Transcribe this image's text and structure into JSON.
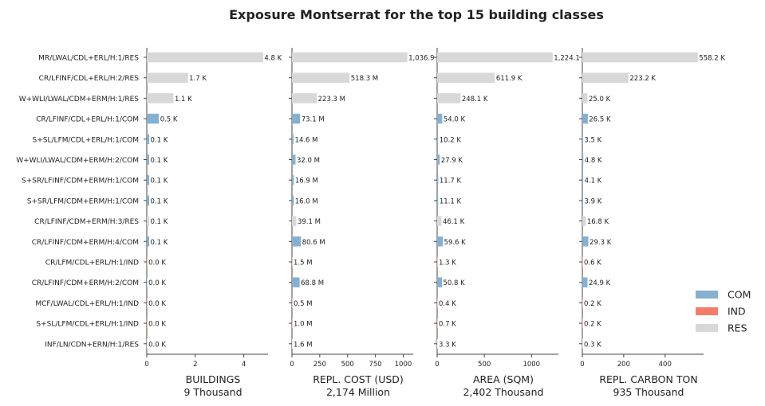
{
  "chart_data": {
    "type": "bar",
    "orientation": "horizontal",
    "title": "Exposure Montserrat for the top 15 building classes",
    "categories": [
      "MR/LWAL/CDL+ERL/H:1/RES",
      "CR/LFINF/CDL+ERL/H:2/RES",
      "W+WLI/LWAL/CDM+ERM/H:1/RES",
      "CR/LFINF/CDL+ERL/H:1/COM",
      "S+SL/LFM/CDL+ERL/H:1/COM",
      "W+WLI/LWAL/CDM+ERM/H:2/COM",
      "S+SR/LFINF/CDM+ERM/H:1/COM",
      "S+SR/LFM/CDM+ERM/H:1/COM",
      "CR/LFINF/CDM+ERM/H:3/RES",
      "CR/LFINF/CDM+ERM/H:4/COM",
      "CR/LFM/CDL+ERL/H:1/IND",
      "CR/LFINF/CDM+ERM/H:2/COM",
      "MCF/LWAL/CDL+ERL/H:1/IND",
      "S+SL/LFM/CDL+ERL/H:1/IND",
      "INF/LN/CDN+ERN/H:1/RES"
    ],
    "occupancy": [
      "RES",
      "RES",
      "RES",
      "COM",
      "COM",
      "COM",
      "COM",
      "COM",
      "RES",
      "COM",
      "IND",
      "COM",
      "IND",
      "IND",
      "RES"
    ],
    "colors": {
      "COM": "#85b0d0",
      "IND": "#f47c6b",
      "RES": "#d8d8d8"
    },
    "legend": {
      "position": "bottom-right",
      "entries": [
        {
          "label": "COM",
          "key": "COM"
        },
        {
          "label": "IND",
          "key": "IND"
        },
        {
          "label": "RES",
          "key": "RES"
        }
      ]
    },
    "panels": [
      {
        "xlabel": "BUILDINGS",
        "subtitle": "9 Thousand",
        "xlim": [
          0,
          5
        ],
        "xticks": [
          0,
          2,
          4
        ],
        "values": [
          4.8,
          1.7,
          1.1,
          0.5,
          0.1,
          0.1,
          0.1,
          0.1,
          0.1,
          0.1,
          0.02,
          0.02,
          0.02,
          0.02,
          0.02
        ],
        "labels": [
          "4.8 K",
          "1.7 K",
          "1.1 K",
          "0.5 K",
          "0.1 K",
          "0.1 K",
          "0.1 K",
          "0.1 K",
          "0.1 K",
          "0.1 K",
          "0.0 K",
          "0.0 K",
          "0.0 K",
          "0.0 K",
          "0.0 K"
        ]
      },
      {
        "xlabel": "REPL. COST (USD)",
        "subtitle": "2,174 Million",
        "xlim": [
          0,
          1090
        ],
        "xticks": [
          0,
          250,
          500,
          750,
          1000
        ],
        "values": [
          1036.9,
          518.3,
          223.3,
          73.1,
          14.6,
          32.0,
          16.9,
          16.0,
          39.1,
          80.6,
          1.5,
          68.8,
          0.5,
          1.0,
          1.6
        ],
        "labels": [
          "1,036.9",
          "518.3 M",
          "223.3 M",
          "73.1 M",
          "14.6 M",
          "32.0 M",
          "16.9 M",
          "16.0 M",
          "39.1 M",
          "80.6 M",
          "1.5 M",
          "68.8 M",
          "0.5 M",
          "1.0 M",
          "1.6 M"
        ]
      },
      {
        "xlabel": "AREA (SQM)",
        "subtitle": "2,402 Thousand",
        "xlim": [
          0,
          1285
        ],
        "xticks": [
          0,
          500,
          1000
        ],
        "values": [
          1224.1,
          611.9,
          248.1,
          54.0,
          10.2,
          27.9,
          11.7,
          11.1,
          46.1,
          59.6,
          1.3,
          50.8,
          0.4,
          0.7,
          3.3
        ],
        "labels": [
          "1,224.1",
          "611.9 K",
          "248.1 K",
          "54.0 K",
          "10.2 K",
          "27.9 K",
          "11.7 K",
          "11.1 K",
          "46.1 K",
          "59.6 K",
          "1.3 K",
          "50.8 K",
          "0.4 K",
          "0.7 K",
          "3.3 K"
        ]
      },
      {
        "xlabel": "REPL. CARBON TON",
        "subtitle": "935 Thousand",
        "xlim": [
          0,
          586
        ],
        "xticks": [
          0,
          200,
          400
        ],
        "values": [
          558.2,
          223.2,
          25.0,
          26.5,
          3.5,
          4.8,
          4.1,
          3.9,
          16.8,
          29.3,
          0.6,
          24.9,
          0.2,
          0.2,
          0.3
        ],
        "labels": [
          "558.2 K",
          "223.2 K",
          "25.0 K",
          "26.5 K",
          "3.5 K",
          "4.8 K",
          "4.1 K",
          "3.9 K",
          "16.8 K",
          "29.3 K",
          "0.6 K",
          "24.9 K",
          "0.2 K",
          "0.2 K",
          "0.3 K"
        ]
      }
    ]
  }
}
